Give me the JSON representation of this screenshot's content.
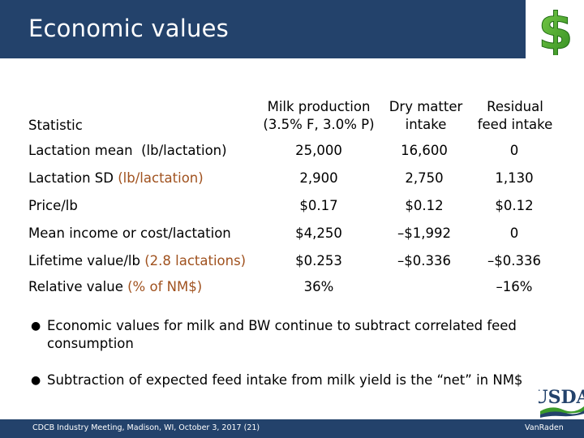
{
  "title": "Economic values",
  "table": {
    "headers": {
      "statistic": "Statistic",
      "milk_line1": "Milk production",
      "milk_line2": "(3.5% F, 3.0% P)",
      "dmi_line1": "Dry matter",
      "dmi_line2": "intake",
      "rfi_line1": "Residual",
      "rfi_line2": "feed intake"
    },
    "rows": [
      {
        "label": "Lactation mean",
        "unit": "(lb/lactation)",
        "milk": "25,000",
        "dmi": "16,600",
        "rfi": "0"
      },
      {
        "label": "Lactation SD",
        "unit": "(lb/lactation)",
        "milk": "2,900",
        "dmi": "2,750",
        "rfi": "1,130"
      },
      {
        "label": "Price/lb",
        "unit": "",
        "milk": "$0.17",
        "dmi": "$0.12",
        "rfi": "$0.12"
      },
      {
        "label": "Mean income or cost/lactation",
        "unit": "",
        "milk": "$4,250",
        "dmi": "–$1,992",
        "rfi": "0"
      },
      {
        "label": "Lifetime value/lb",
        "unit": "(2.8 lactations)",
        "milk": "$0.253",
        "dmi": "–$0.336",
        "rfi": "–$0.336"
      },
      {
        "label": "Relative value",
        "unit": "(% of NM$)",
        "milk": "36%",
        "dmi": "",
        "rfi": "–16%"
      }
    ]
  },
  "bullets": [
    "Economic values for milk and BW continue to subtract correlated feed consumption",
    "Subtraction of expected feed intake from milk yield is the “net” in NM$"
  ],
  "footer": {
    "left": "CDCB Industry Meeting, Madison, WI, October 3, 2017 (21)",
    "right": "VanRaden"
  },
  "logo_text": "USDA",
  "colors": {
    "title_bar": "#23426b",
    "accent_text": "#a0521f",
    "dollar_green": "#3a9a2a"
  }
}
